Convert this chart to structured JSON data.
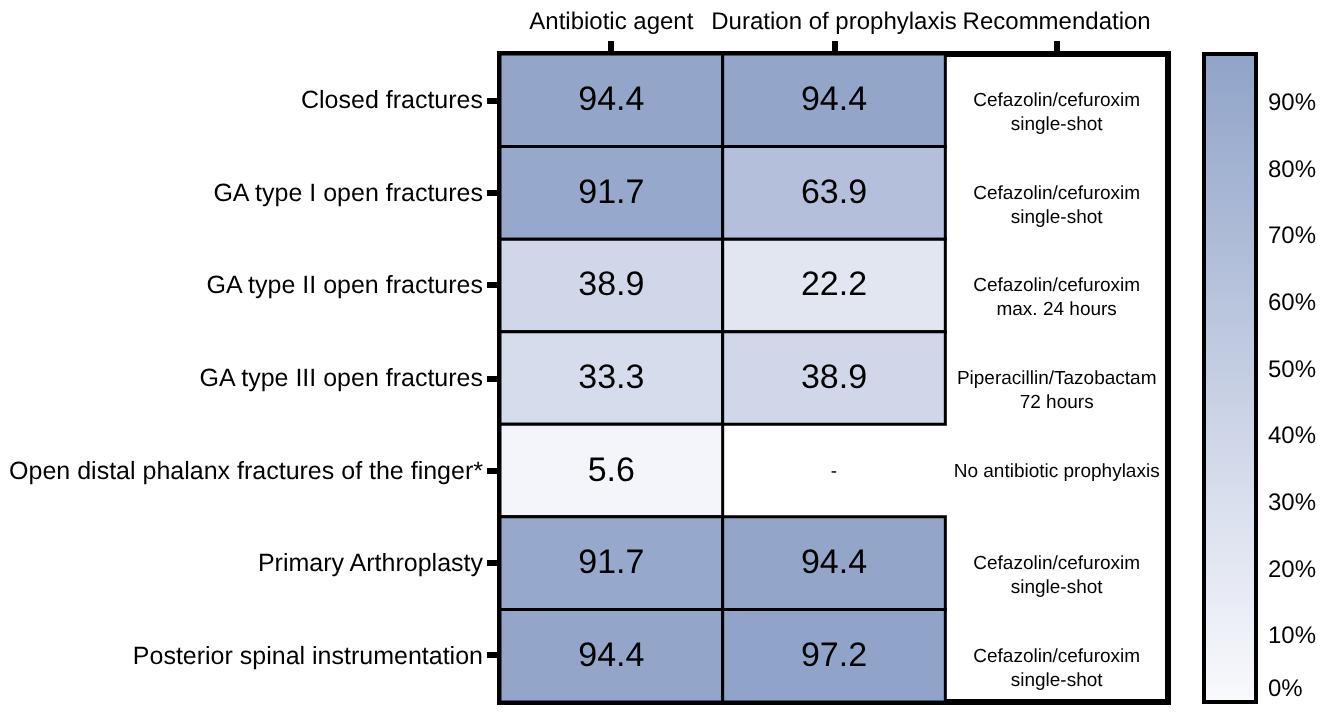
{
  "chart_data": {
    "type": "heatmap",
    "categories": [
      "Antibiotic agent",
      "Duration of prophylaxis",
      "Recommendation"
    ],
    "y_categories": [
      "Closed fractures",
      "GA type I open fractures",
      "GA type II open fractures",
      "GA type III open fractures",
      "Open distal phalanx fractures of the finger*",
      "Primary Arthroplasty",
      "Posterior spinal instrumentation"
    ],
    "cells": [
      [
        94.4,
        94.4,
        null
      ],
      [
        91.7,
        63.9,
        null
      ],
      [
        38.9,
        22.2,
        null
      ],
      [
        33.3,
        38.9,
        null
      ],
      [
        5.6,
        null,
        null
      ],
      [
        91.7,
        94.4,
        null
      ],
      [
        94.4,
        97.2,
        null
      ]
    ],
    "cell_labels": [
      [
        "94.4",
        "94.4",
        "Cefazolin/cefuroxim\nsingle-shot"
      ],
      [
        "91.7",
        "63.9",
        "Cefazolin/cefuroxim\nsingle-shot"
      ],
      [
        "38.9",
        "22.2",
        "Cefazolin/cefuroxim\nmax. 24 hours"
      ],
      [
        "33.3",
        "38.9",
        "Piperacillin/Tazobactam\n72 hours"
      ],
      [
        "5.6",
        "-",
        "No antibiotic prophylaxis"
      ],
      [
        "91.7",
        "94.4",
        "Cefazolin/cefuroxim\nsingle-shot"
      ],
      [
        "94.4",
        "97.2",
        "Cefazolin/cefuroxim\nsingle-shot"
      ]
    ],
    "clim": [
      0,
      97.2
    ],
    "cticks": [
      {
        "value": 0,
        "label": "0%"
      },
      {
        "value": 10,
        "label": "10%"
      },
      {
        "value": 20,
        "label": "20%"
      },
      {
        "value": 30,
        "label": "30%"
      },
      {
        "value": 40,
        "label": "40%"
      },
      {
        "value": 50,
        "label": "50%"
      },
      {
        "value": 60,
        "label": "60%"
      },
      {
        "value": 70,
        "label": "70%"
      },
      {
        "value": 80,
        "label": "80%"
      },
      {
        "value": 90,
        "label": "90%"
      }
    ],
    "colors": [
      "#f9fafd",
      "#90a4c9"
    ]
  }
}
